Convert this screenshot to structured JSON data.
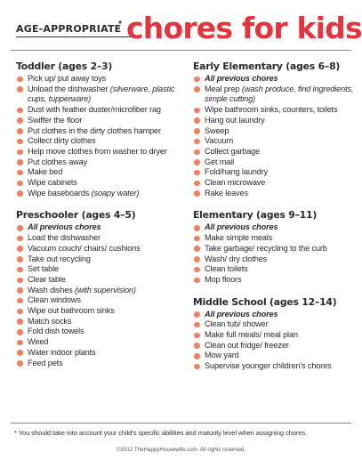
{
  "header": {
    "age_label": "AGE-APPROPRIATE",
    "star": "*",
    "title": "chores for kids"
  },
  "sections": {
    "toddler": {
      "title": "Toddler (ages 2–3)",
      "items": [
        {
          "text": "Pick up/ put away toys"
        },
        {
          "text": "Unload the dishwasher ",
          "note": "(silverware, plastic cups, tupperware)"
        },
        {
          "text": "Dust with feather duster/microfiber rag"
        },
        {
          "text": "Swiffer the floor"
        },
        {
          "text": "Put clothes in the dirty clothes hamper"
        },
        {
          "text": "Collect dirty clothes"
        },
        {
          "text": "Help move clothes from washer to dryer"
        },
        {
          "text": "Put clothes away"
        },
        {
          "text": "Make bed"
        },
        {
          "text": "Wipe cabinets"
        },
        {
          "text": "Wipe baseboards ",
          "note": "(soapy water)"
        }
      ]
    },
    "preschooler": {
      "title": "Preschooler (ages 4–5)",
      "items": [
        {
          "text": "All previous chores",
          "emph": true
        },
        {
          "text": "Load the dishwasher"
        },
        {
          "text": "Vacuum couch/ chairs/ cushions"
        },
        {
          "text": "Take out recycling"
        },
        {
          "text": "Set table"
        },
        {
          "text": "Clear table"
        },
        {
          "text": "Wash dishes ",
          "note": "(with supervision)"
        },
        {
          "text": "Clean windows"
        },
        {
          "text": "Wipe out bathroom sinks"
        },
        {
          "text": "Match socks"
        },
        {
          "text": "Fold dish towels"
        },
        {
          "text": "Weed"
        },
        {
          "text": "Water indoor plants"
        },
        {
          "text": "Feed pets"
        }
      ]
    },
    "early_elementary": {
      "title": "Early Elementary (ages 6–8)",
      "items": [
        {
          "text": "All previous chores",
          "emph": true
        },
        {
          "text": "Meal prep ",
          "note": "(wash produce, find ingredients, simple cutting)"
        },
        {
          "text": "Wipe bathroom sinks, counters, toilets"
        },
        {
          "text": "Hang out laundry"
        },
        {
          "text": "Sweep"
        },
        {
          "text": "Vacuum"
        },
        {
          "text": "Collect garbage"
        },
        {
          "text": "Get mail"
        },
        {
          "text": "Fold/hang laundry"
        },
        {
          "text": "Clean microwave"
        },
        {
          "text": "Rake leaves"
        }
      ]
    },
    "elementary": {
      "title": "Elementary (ages 9–11)",
      "items": [
        {
          "text": "All previous chores",
          "emph": true
        },
        {
          "text": "Make simple meals"
        },
        {
          "text": "Take garbage/ recycling to the curb"
        },
        {
          "text": "Wash/ dry clothes"
        },
        {
          "text": "Clean toilets"
        },
        {
          "text": "Mop floors"
        }
      ]
    },
    "middle_school": {
      "title": "Middle School (ages 12–14)",
      "items": [
        {
          "text": "All previous chores",
          "emph": true
        },
        {
          "text": "Clean tub/ shower"
        },
        {
          "text": "Make full meals/ meal plan"
        },
        {
          "text": "Clean out fridge/ freezer"
        },
        {
          "text": "Mow yard"
        },
        {
          "text": "Supervise younger children's chores"
        }
      ]
    }
  },
  "footnote": "* You should take into account your child's specific abilities and maturity level when assigning chores.",
  "copyright": "©2012 TheHappyHousewife.com. All rights reserved.",
  "colors": {
    "title": "#e2353d",
    "bullet": "#f08062",
    "text": "#2b2b2b"
  }
}
